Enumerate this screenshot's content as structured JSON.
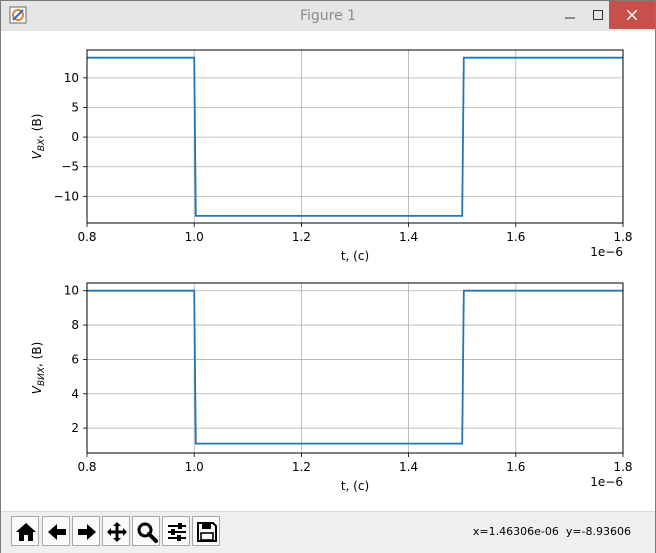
{
  "window": {
    "title": "Figure 1",
    "controls": {
      "minimize_icon": "minimize-icon",
      "maximize_icon": "maximize-icon",
      "close_icon": "close-icon"
    }
  },
  "toolbar": {
    "buttons": [
      {
        "name": "home-button",
        "icon": "home-icon"
      },
      {
        "name": "back-button",
        "icon": "left-arrow-icon"
      },
      {
        "name": "forward-button",
        "icon": "right-arrow-icon"
      },
      {
        "name": "pan-button",
        "icon": "move-icon"
      },
      {
        "name": "zoom-button",
        "icon": "magnifier-icon"
      },
      {
        "name": "configure-subplots-button",
        "icon": "sliders-icon"
      },
      {
        "name": "save-button",
        "icon": "floppy-disk-icon"
      }
    ],
    "coordinates": "x=1.46306e-06  y=-8.93606"
  },
  "chart_data": [
    {
      "type": "line",
      "xlabel": "t, (c)",
      "ylabel_base": "V",
      "ylabel_sub": "BX",
      "ylabel_suffix": ", (B)",
      "offset_text": "1e−6",
      "xlim": [
        0.8,
        1.8
      ],
      "ylim": [
        -14.5,
        14.7
      ],
      "grid": true,
      "color": "#1f77b4",
      "xticks": [
        0.8,
        1.0,
        1.2,
        1.4,
        1.6,
        1.8
      ],
      "xtick_labels": [
        "0.8",
        "1.0",
        "1.2",
        "1.4",
        "1.6",
        "1.8"
      ],
      "yticks": [
        10,
        5,
        0,
        -5,
        -10
      ],
      "ytick_labels": [
        "10",
        "5",
        "0",
        "−5",
        "−10"
      ],
      "series": [
        {
          "x": [
            0.8,
            1.0,
            1.003,
            1.5,
            1.503,
            1.8
          ],
          "y": [
            13.4,
            13.4,
            -13.3,
            -13.3,
            13.4,
            13.4
          ]
        }
      ]
    },
    {
      "type": "line",
      "xlabel": "t, (c)",
      "ylabel_base": "V",
      "ylabel_sub": "BИX",
      "ylabel_suffix": ", (B)",
      "offset_text": "1e−6",
      "xlim": [
        0.8,
        1.8
      ],
      "ylim": [
        0.55,
        10.45
      ],
      "grid": true,
      "color": "#1f77b4",
      "xticks": [
        0.8,
        1.0,
        1.2,
        1.4,
        1.6,
        1.8
      ],
      "xtick_labels": [
        "0.8",
        "1.0",
        "1.2",
        "1.4",
        "1.6",
        "1.8"
      ],
      "yticks": [
        10,
        8,
        6,
        4,
        2
      ],
      "ytick_labels": [
        "10",
        "8",
        "6",
        "4",
        "2"
      ],
      "series": [
        {
          "x": [
            0.8,
            1.0,
            1.003,
            1.5,
            1.503,
            1.8
          ],
          "y": [
            10.0,
            10.0,
            1.1,
            1.1,
            10.0,
            10.0
          ]
        }
      ]
    }
  ]
}
